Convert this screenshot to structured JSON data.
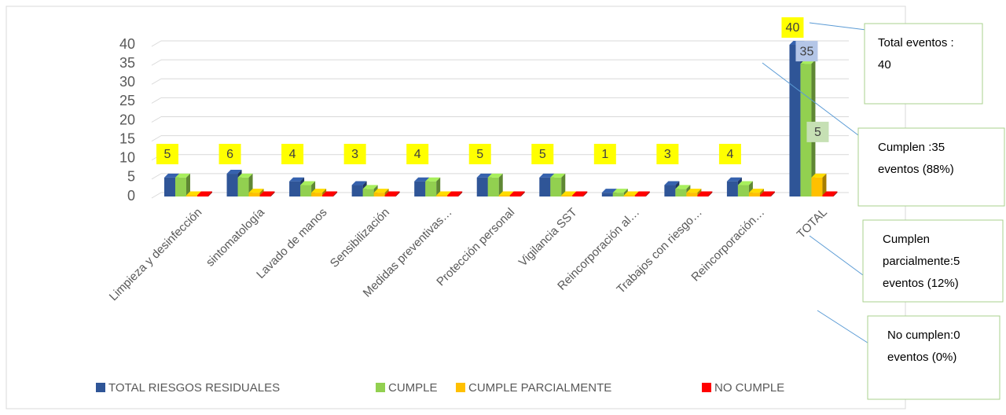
{
  "chart_data": {
    "type": "bar3d",
    "categories": [
      "Limpieza y desinfección",
      "sintomatología",
      "Lavado de manos",
      "Sensibilización",
      "Medidas preventivas…",
      "Protección personal",
      "Vigilancia SST",
      "Reincorporación al…",
      "Trabajos  con riesgo…",
      "Reincorporación…",
      "TOTAL"
    ],
    "series": [
      {
        "name": "TOTAL RIESGOS RESIDUALES",
        "color": "#2f5597",
        "values": [
          5,
          6,
          4,
          3,
          4,
          5,
          5,
          1,
          3,
          4,
          40
        ]
      },
      {
        "name": "CUMPLE",
        "color": "#92d050",
        "values": [
          5,
          5,
          3,
          2,
          4,
          5,
          5,
          1,
          2,
          3,
          35
        ]
      },
      {
        "name": "CUMPLE PARCIALMENTE",
        "color": "#ffc000",
        "values": [
          0,
          1,
          1,
          1,
          0,
          0,
          0,
          0,
          1,
          1,
          5
        ]
      },
      {
        "name": "NO CUMPLE",
        "color": "#ff0000",
        "values": [
          0,
          0,
          0,
          0,
          0,
          0,
          0,
          0,
          0,
          0,
          0
        ]
      }
    ],
    "ylim": [
      0,
      40
    ],
    "yticks": [
      0,
      5,
      10,
      15,
      20,
      25,
      30,
      35,
      40
    ],
    "grid": true,
    "legend": "bottom",
    "annotations": [
      {
        "lines": [
          "Total eventos :",
          "40"
        ]
      },
      {
        "lines": [
          "Cumplen :35",
          "eventos (88%)"
        ]
      },
      {
        "lines": [
          "Cumplen",
          "parcialmente:5",
          "eventos (12%)"
        ]
      },
      {
        "lines": [
          "No cumplen:0",
          "eventos (0%)"
        ]
      }
    ]
  }
}
